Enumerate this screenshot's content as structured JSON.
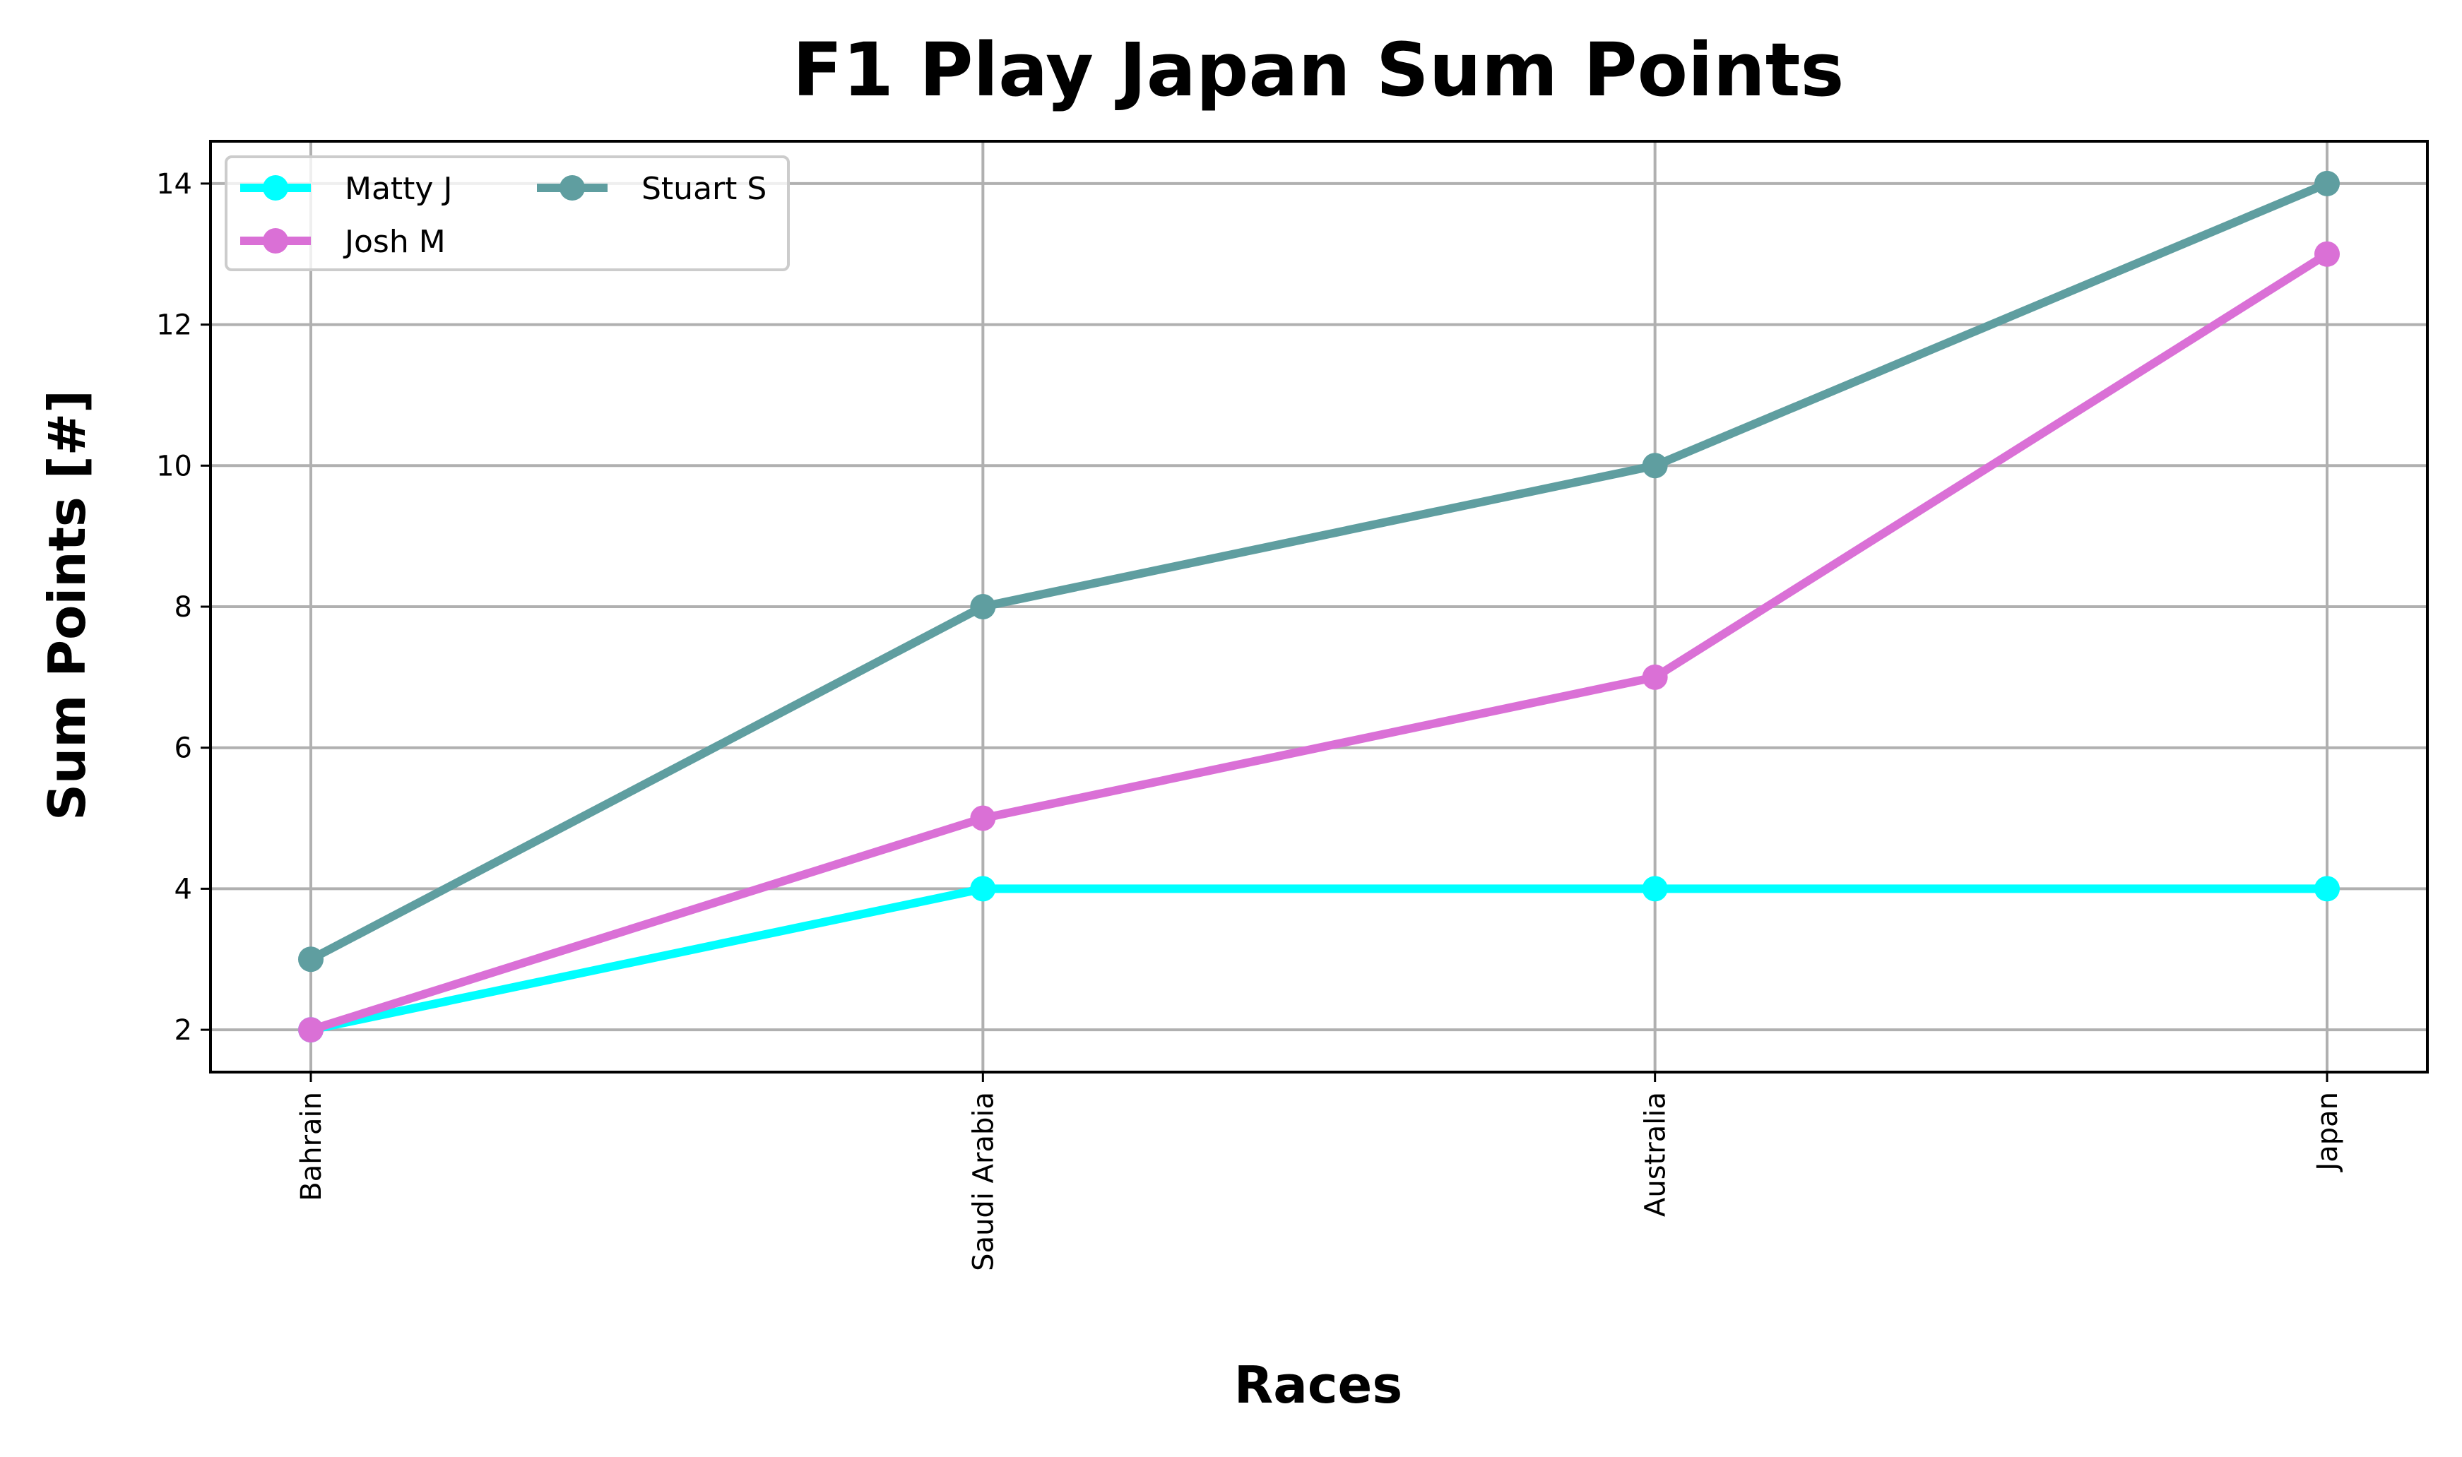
{
  "chart_data": {
    "type": "line",
    "title": "F1 Play Japan Sum Points",
    "xlabel": "Races",
    "ylabel": "Sum Points [#]",
    "categories": [
      "Bahrain",
      "Saudi Arabia",
      "Australia",
      "Japan"
    ],
    "ylim": [
      1.4,
      14.6
    ],
    "yticks": [
      2,
      4,
      6,
      8,
      10,
      12,
      14
    ],
    "grid": true,
    "legend": {
      "placement": "top-left",
      "columns": 2
    },
    "series": [
      {
        "name": "Matty J",
        "color": "#00FFFF",
        "values": [
          2,
          4,
          4,
          4
        ]
      },
      {
        "name": "Josh M",
        "color": "#DA70D6",
        "values": [
          2,
          5,
          7,
          13
        ]
      },
      {
        "name": "Stuart S",
        "color": "#5F9EA0",
        "values": [
          3,
          8,
          10,
          14
        ]
      }
    ]
  }
}
